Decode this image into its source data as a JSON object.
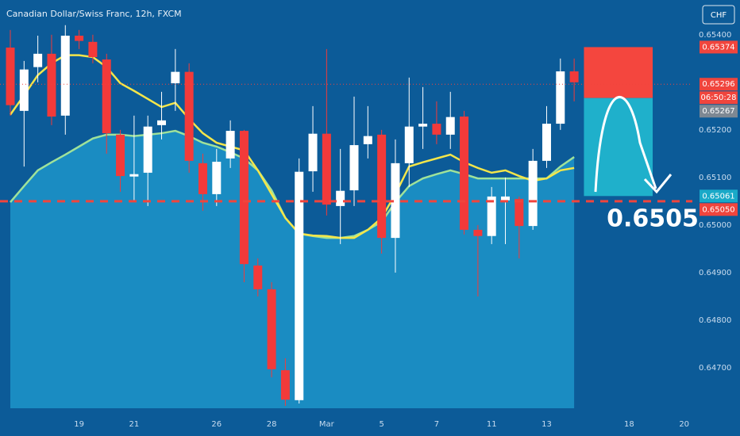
{
  "chart_data": {
    "type": "candlestick",
    "title": "Canadian Dollar/Swiss Franc, 12h, FXCM",
    "currency_button": "CHF",
    "categories": [
      null,
      null,
      null,
      null,
      null,
      "19",
      null,
      null,
      null,
      "21",
      null,
      null,
      null,
      null,
      null,
      "26",
      null,
      null,
      null,
      "28",
      null,
      null,
      null,
      "Mar",
      null,
      null,
      null,
      "5",
      null,
      null,
      null,
      "7",
      null,
      null,
      null,
      "11",
      null,
      null,
      null,
      "13",
      null,
      null,
      null,
      null,
      null,
      "18",
      null,
      null,
      null,
      "20"
    ],
    "open": [
      0.65373,
      0.6524,
      0.65332,
      0.6536,
      0.6523,
      0.65398,
      0.65385,
      0.65348,
      0.6519,
      0.65102,
      0.6511,
      0.6521,
      0.65298,
      0.65322,
      0.6513,
      0.65065,
      0.6514,
      0.65198,
      0.64915,
      0.64865,
      0.64695,
      0.64632,
      0.65113,
      0.65192,
      0.6504,
      0.65073,
      0.6517,
      0.6519,
      0.64973,
      0.6513,
      0.65207,
      0.65213,
      0.6519,
      0.65228,
      0.6499,
      0.64977,
      0.65052,
      0.65055,
      0.64998,
      0.65135,
      0.65213,
      0.65323,
      null,
      null,
      null,
      null,
      null,
      null,
      null,
      null
    ],
    "high": [
      0.6541,
      0.65345,
      0.65398,
      0.654,
      0.6542,
      0.6541,
      0.654,
      0.6536,
      0.652,
      0.6523,
      0.6523,
      0.6528,
      0.6537,
      0.6534,
      0.6515,
      0.6516,
      0.6522,
      0.652,
      0.6493,
      0.6488,
      0.6472,
      0.6514,
      0.6525,
      0.6537,
      0.6516,
      0.6527,
      0.6525,
      0.652,
      0.6518,
      0.6531,
      0.6529,
      0.6526,
      0.6528,
      0.6524,
      0.65,
      0.6508,
      0.651,
      0.6506,
      0.6516,
      0.6525,
      0.6535,
      0.6535,
      null,
      null,
      null,
      null,
      null,
      null,
      null,
      null
    ],
    "low": [
      0.6523,
      0.65123,
      0.653,
      0.6521,
      0.6519,
      0.6537,
      0.6534,
      0.6515,
      0.6507,
      0.6505,
      0.6504,
      0.6518,
      0.6524,
      0.6511,
      0.6503,
      0.6504,
      0.6512,
      0.6488,
      0.6485,
      0.6468,
      0.6462,
      0.64625,
      0.6507,
      0.6502,
      0.6496,
      0.6504,
      0.6514,
      0.6494,
      0.649,
      0.6508,
      0.6516,
      0.6517,
      0.6516,
      0.6498,
      0.6485,
      0.6496,
      0.6496,
      0.6493,
      0.6499,
      0.6512,
      0.652,
      0.6526,
      null,
      null,
      null,
      null,
      null,
      null,
      null,
      null
    ],
    "close": [
      0.65252,
      0.65327,
      0.6536,
      0.65228,
      0.65398,
      0.65387,
      0.65353,
      0.65193,
      0.65103,
      0.65107,
      0.65207,
      0.6522,
      0.65322,
      0.65135,
      0.65065,
      0.65133,
      0.65198,
      0.64918,
      0.64865,
      0.64697,
      0.64633,
      0.65112,
      0.65192,
      0.65043,
      0.65072,
      0.65168,
      0.65187,
      0.64973,
      0.6513,
      0.65207,
      0.65213,
      0.6519,
      0.65227,
      0.6499,
      0.64977,
      0.6506,
      0.6506,
      0.64998,
      0.65135,
      0.65213,
      0.65323,
      0.653,
      null,
      null,
      null,
      null,
      null,
      null,
      null,
      null
    ],
    "up_color": "#ffffff",
    "down_color": "#f23a3a",
    "overlays": [
      {
        "color": "#9fe29a",
        "fill": "#1a8cc2",
        "values": [
          0.65048,
          0.65082,
          0.65115,
          0.65132,
          0.65148,
          0.65165,
          0.65182,
          0.6519,
          0.6519,
          0.65187,
          0.6519,
          0.65193,
          0.65198,
          0.65187,
          0.65173,
          0.65165,
          0.65153,
          0.6514,
          0.65115,
          0.65073,
          0.65015,
          0.64982,
          0.64977,
          0.64973,
          0.64973,
          0.64977,
          0.6499,
          0.65007,
          0.65048,
          0.65082,
          0.65098,
          0.65107,
          0.65115,
          0.65107,
          0.65098,
          0.65098,
          0.65098,
          0.65098,
          0.65098,
          0.65098,
          0.65123,
          0.65143,
          null,
          null,
          null,
          null,
          null,
          null,
          null,
          null
        ]
      },
      {
        "color": "#f4e64a",
        "values": [
          0.65232,
          0.65273,
          0.65315,
          0.6534,
          0.65357,
          0.65357,
          0.65353,
          0.65332,
          0.65298,
          0.65282,
          0.65265,
          0.65248,
          0.65257,
          0.65223,
          0.65193,
          0.65173,
          0.65165,
          0.65157,
          0.65115,
          0.65065,
          0.65015,
          0.64982,
          0.64978,
          0.64977,
          0.64973,
          0.64973,
          0.6499,
          0.65015,
          0.65065,
          0.65123,
          0.65132,
          0.6514,
          0.65148,
          0.65132,
          0.6512,
          0.6511,
          0.65115,
          0.65103,
          0.65093,
          0.65098,
          0.65115,
          0.6512,
          null,
          null,
          null,
          null,
          null,
          null,
          null,
          null
        ]
      }
    ],
    "ylim": [
      0.64615,
      0.65473
    ],
    "yticks": [
      {
        "value": 0.654,
        "label": "0.65400"
      },
      {
        "value": 0.652,
        "label": "0.65200"
      },
      {
        "value": 0.651,
        "label": "0.65100"
      },
      {
        "value": 0.65,
        "label": "0.65000"
      },
      {
        "value": 0.649,
        "label": "0.64900"
      },
      {
        "value": 0.648,
        "label": "0.64800"
      },
      {
        "value": 0.647,
        "label": "0.64700"
      }
    ],
    "price_tags": [
      {
        "value": 0.65374,
        "label": "0.65374",
        "color": "#f0453d"
      },
      {
        "value": 0.65296,
        "label": "0.65296",
        "color": "#f0453d",
        "countdown": "06:50:28"
      },
      {
        "value": 0.65267,
        "label": "0.65267",
        "color": "#7d8893"
      },
      {
        "value": 0.65061,
        "label": "0.65061",
        "color": "#19a9c8"
      },
      {
        "value": 0.6505,
        "label": "0.65050",
        "color": "#f0453d"
      }
    ],
    "annotation": "0.6505"
  }
}
